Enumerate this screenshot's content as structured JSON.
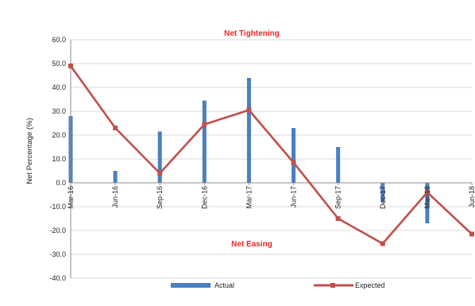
{
  "chart_data": {
    "type": "bar",
    "categories": [
      "Mar-16",
      "Jun-16",
      "Sep-16",
      "Dec-16",
      "Mar-17",
      "Jun-17",
      "Sep-17",
      "Dec-17",
      "Mar-18",
      "Jun-18"
    ],
    "series": [
      {
        "name": "Actual",
        "type": "bar",
        "color": "#4a7fc1",
        "values": [
          28.0,
          5.0,
          21.5,
          34.5,
          44.0,
          23.0,
          15.0,
          -8.0,
          -17.0,
          null
        ]
      },
      {
        "name": "Expected",
        "type": "line",
        "color": "#c0504d",
        "values": [
          49.0,
          23.0,
          4.0,
          24.5,
          30.5,
          8.5,
          -15.0,
          -25.5,
          -4.0,
          -21.5
        ]
      }
    ],
    "ylabel": "Net Percentage (%)",
    "xlabel": "",
    "ylim": [
      -40,
      60
    ],
    "yticks": [
      "60.0",
      "50.0",
      "40.0",
      "30.0",
      "20.0",
      "10.0",
      "0.0",
      "-10.0",
      "-20.0",
      "-30.0",
      "-40.0"
    ],
    "grid": true,
    "legend": "bottom",
    "annotations": {
      "top": "Net Tightening",
      "bottom": "Net Easing"
    }
  }
}
